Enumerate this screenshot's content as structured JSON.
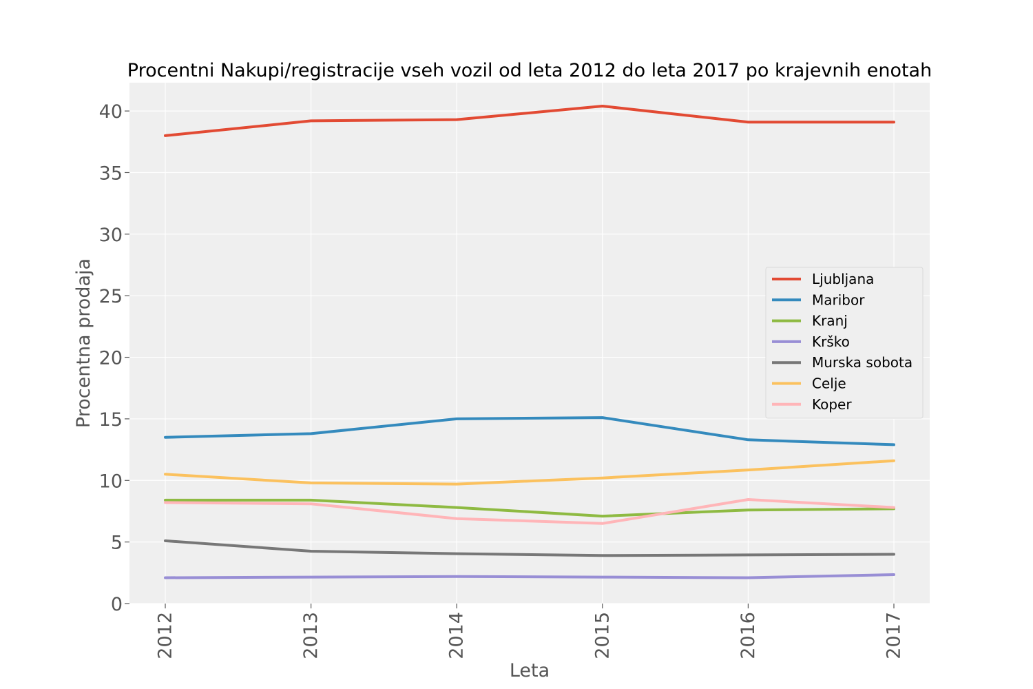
{
  "chart_data": {
    "type": "line",
    "title": "Procentni Nakupi/registracije vseh vozil od leta 2012 do leta 2017 po krajevnih enotah",
    "xlabel": "Leta",
    "ylabel": "Procentna prodaja",
    "x": [
      "2012",
      "2013",
      "2014",
      "2015",
      "2016",
      "2017"
    ],
    "ylim": [
      0,
      42.3
    ],
    "yticks": [
      "0",
      "5",
      "10",
      "15",
      "20",
      "25",
      "30",
      "35",
      "40"
    ],
    "grid": true,
    "legend_position": "center-right",
    "series": [
      {
        "name": "Ljubljana",
        "color": "#E24A33",
        "values": [
          38.0,
          39.2,
          39.3,
          40.4,
          39.1,
          39.1
        ]
      },
      {
        "name": "Maribor",
        "color": "#348ABD",
        "values": [
          13.5,
          13.8,
          15.0,
          15.1,
          13.3,
          12.9
        ]
      },
      {
        "name": "Kranj",
        "color": "#8EBA42",
        "values": [
          8.4,
          8.4,
          7.8,
          7.1,
          7.6,
          7.7
        ]
      },
      {
        "name": "Krško",
        "color": "#988ED5",
        "values": [
          2.1,
          2.15,
          2.2,
          2.15,
          2.1,
          2.35
        ]
      },
      {
        "name": "Murska sobota",
        "color": "#777777",
        "values": [
          5.1,
          4.25,
          4.05,
          3.9,
          3.95,
          4.0
        ]
      },
      {
        "name": "Celje",
        "color": "#FBC15E",
        "values": [
          10.5,
          9.8,
          9.7,
          10.2,
          10.85,
          11.6
        ]
      },
      {
        "name": "Koper",
        "color": "#FFB5B8",
        "values": [
          8.2,
          8.1,
          6.9,
          6.5,
          8.45,
          7.8
        ]
      }
    ]
  }
}
